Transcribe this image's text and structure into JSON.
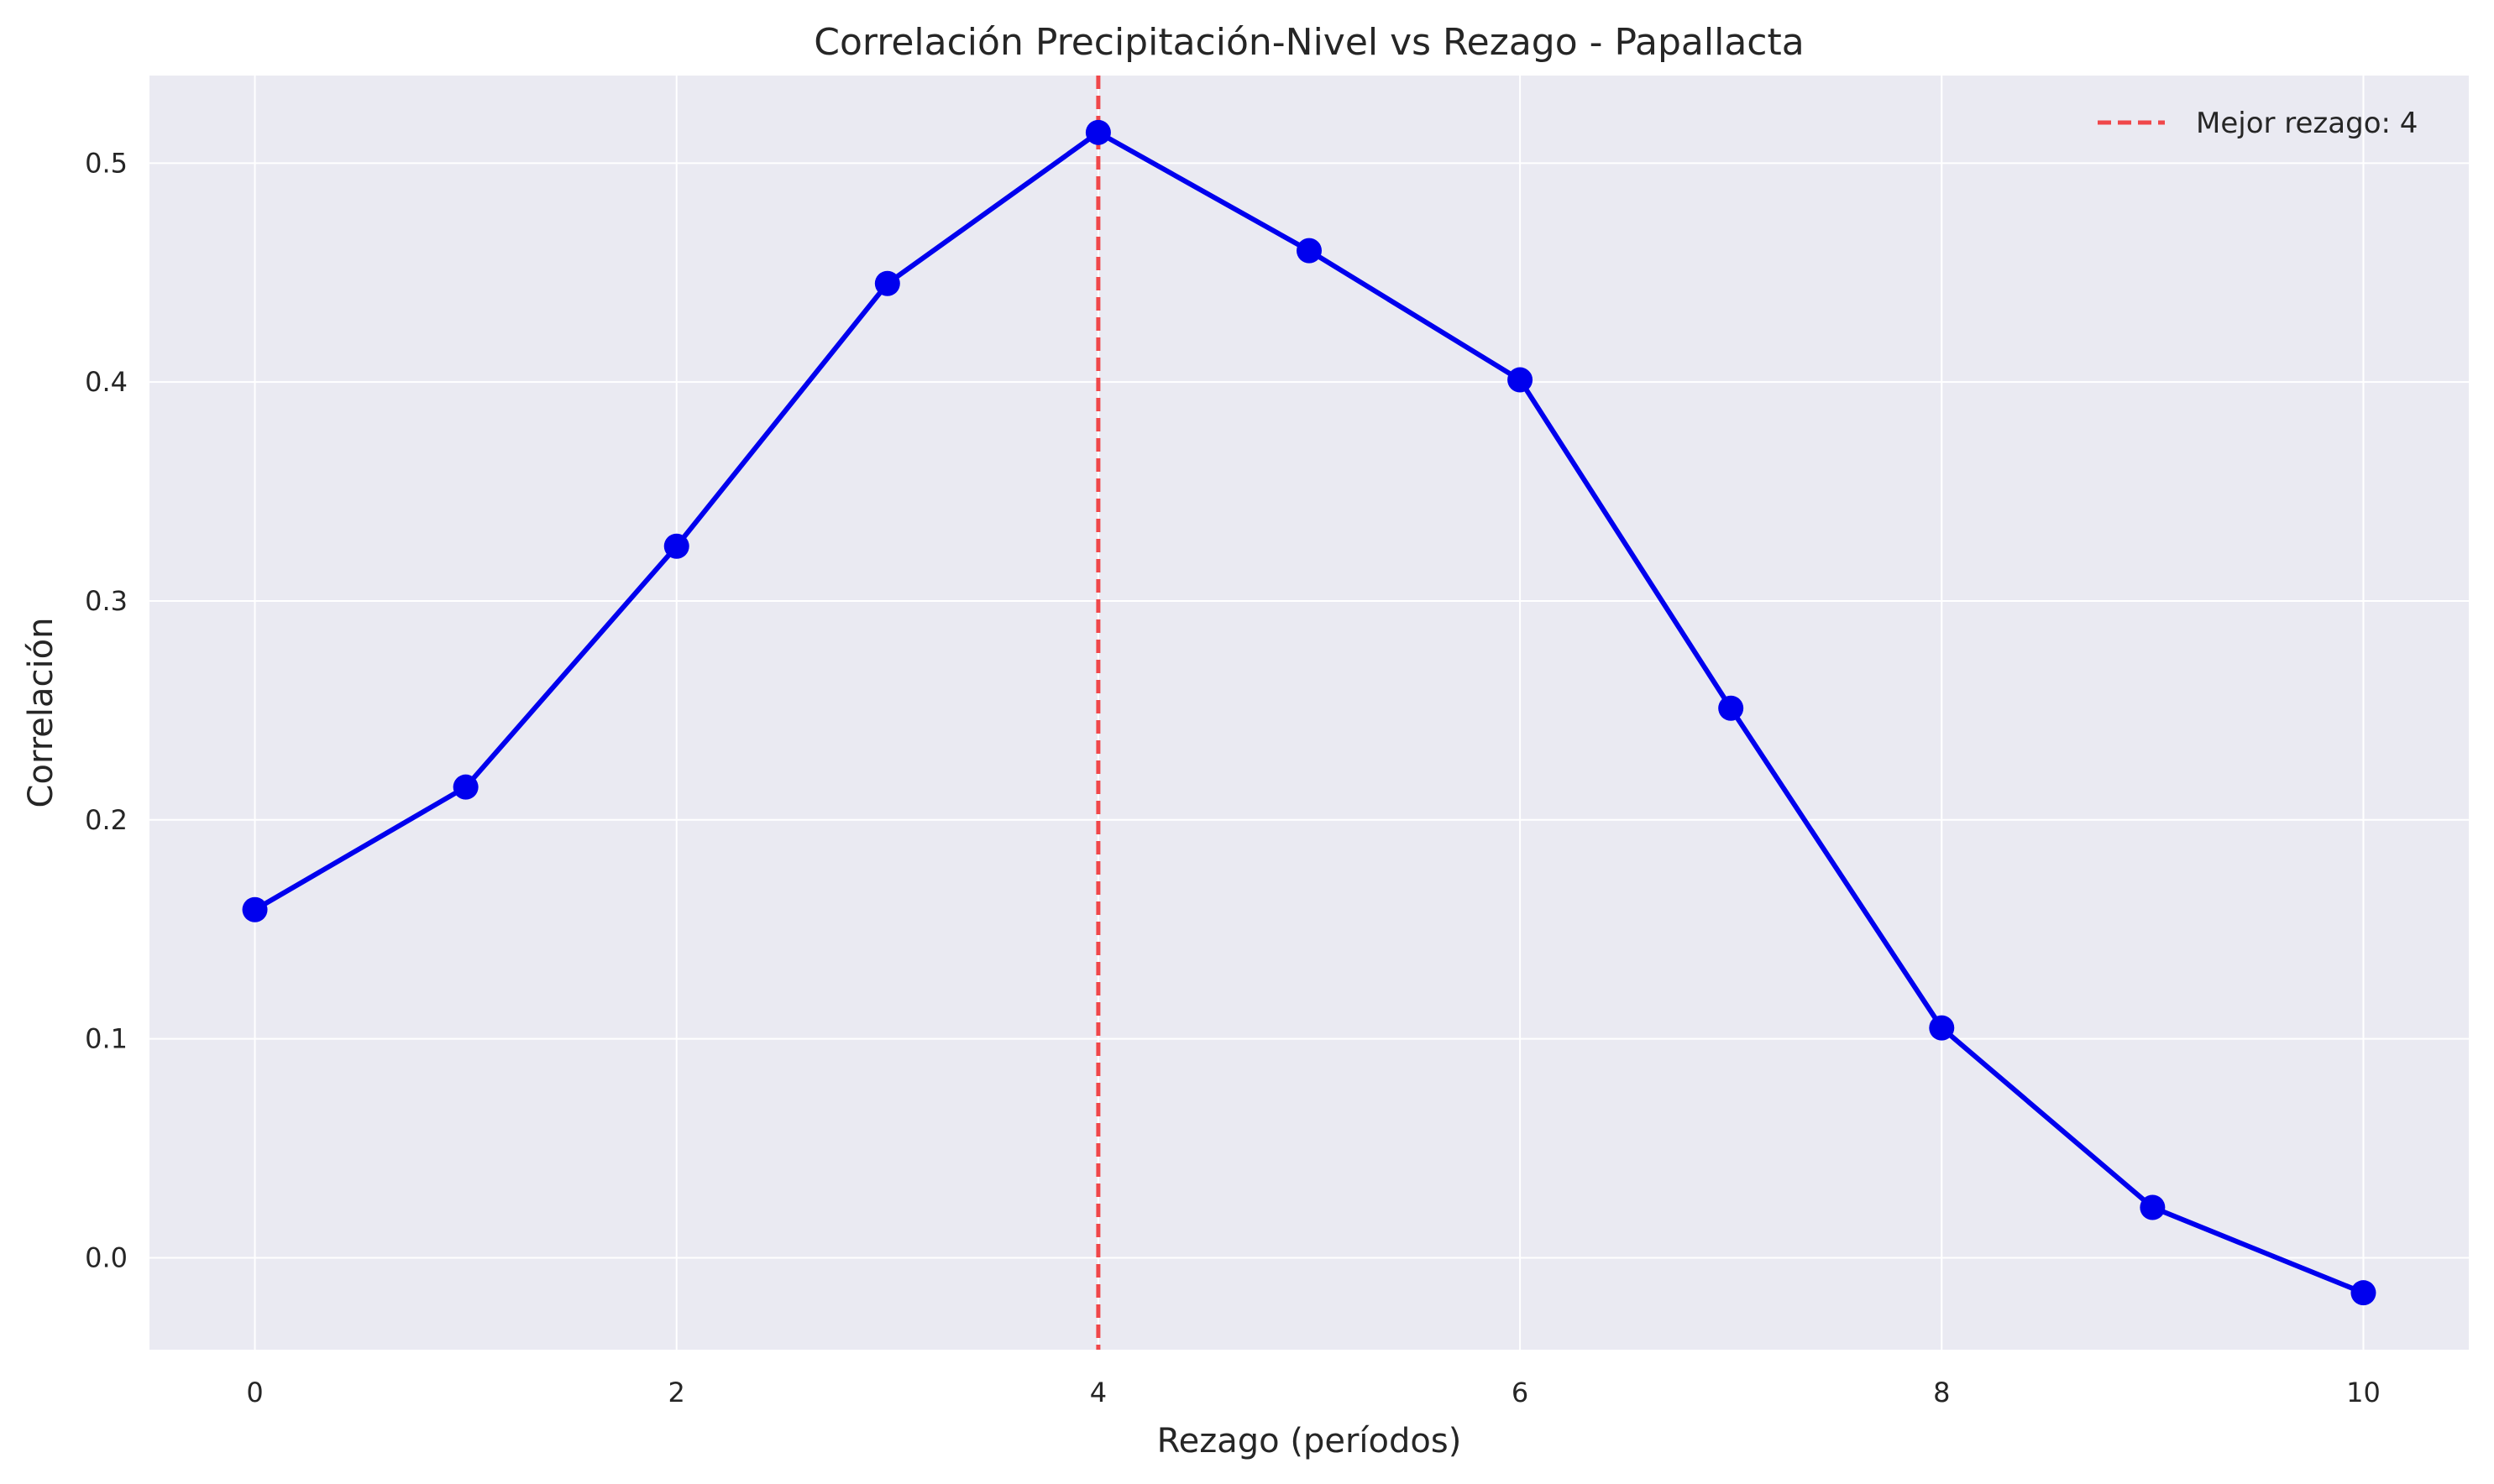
{
  "chart_data": {
    "type": "line",
    "title": "Correlación Precipitación-Nivel vs Rezago - Papallacta",
    "xlabel": "Rezago (períodos)",
    "ylabel": "Correlación",
    "x": [
      0,
      1,
      2,
      3,
      4,
      5,
      6,
      7,
      8,
      9,
      10
    ],
    "series": [
      {
        "values": [
          0.159,
          0.215,
          0.325,
          0.445,
          0.514,
          0.46,
          0.401,
          0.251,
          0.105,
          0.023,
          -0.016
        ],
        "color": "#0000ee"
      }
    ],
    "xlim": [
      -0.5,
      10.5
    ],
    "ylim": [
      -0.042,
      0.54
    ],
    "xticks": [
      0,
      2,
      4,
      6,
      8,
      10
    ],
    "yticks": [
      0.0,
      0.1,
      0.2,
      0.3,
      0.4,
      0.5
    ],
    "xtick_labels": [
      "0",
      "2",
      "4",
      "6",
      "8",
      "10"
    ],
    "ytick_labels": [
      "0.0",
      "0.1",
      "0.2",
      "0.3",
      "0.4",
      "0.5"
    ],
    "reference_line": {
      "orientation": "vertical",
      "x": 4,
      "color": "#f0474a",
      "style": "dashed"
    },
    "legend": {
      "placement": "top-right",
      "entries": [
        {
          "label": "Mejor rezago: 4",
          "color": "#f0474a",
          "style": "dashed"
        }
      ]
    },
    "grid": true,
    "background_color": "#eaeaf2",
    "grid_color": "#ffffff"
  }
}
